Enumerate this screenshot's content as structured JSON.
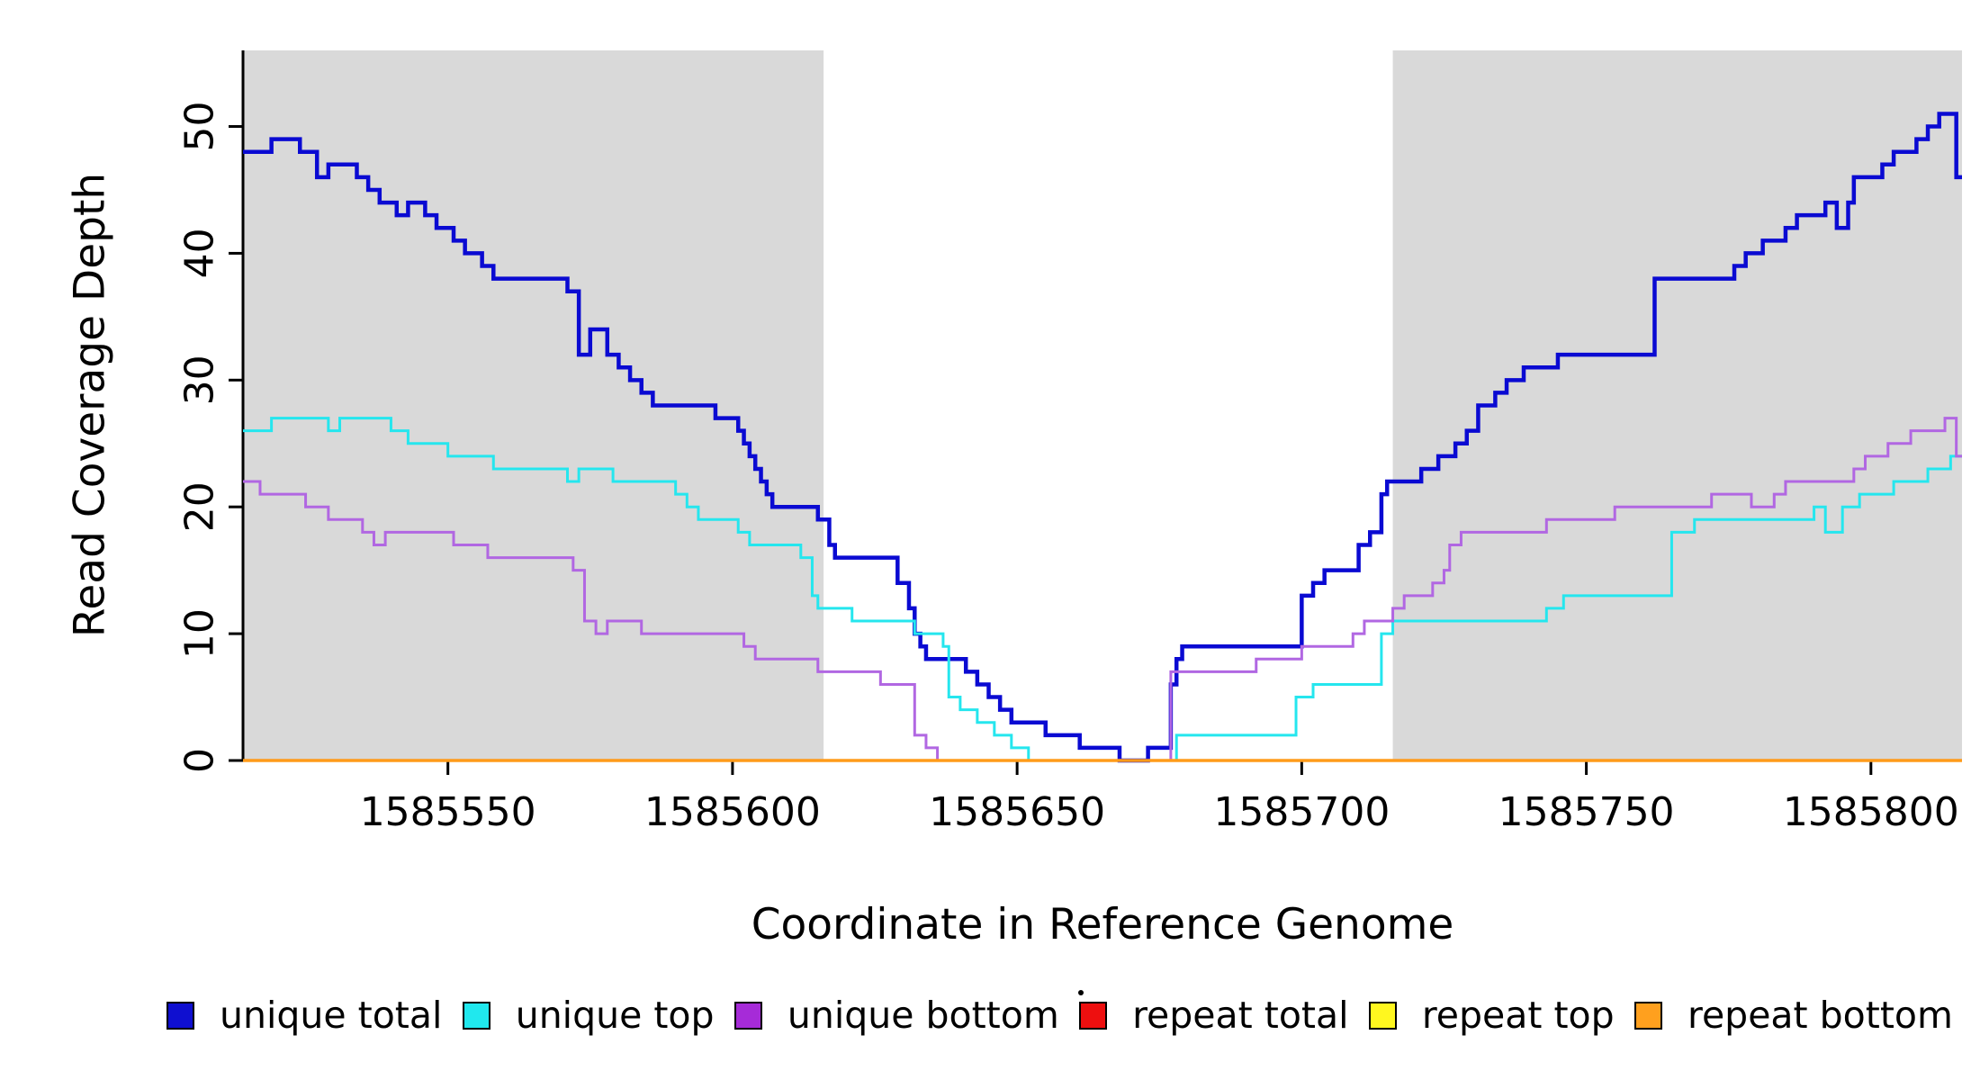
{
  "chart_data": {
    "type": "line",
    "subtype": "step",
    "title": "",
    "xlabel": "Coordinate in Reference Genome",
    "ylabel": "Read Coverage Depth",
    "xlim": [
      1585514,
      1585816
    ],
    "ylim": [
      0,
      56
    ],
    "xticks": [
      1585550,
      1585600,
      1585650,
      1585700,
      1585750,
      1585800
    ],
    "yticks": [
      0,
      10,
      20,
      30,
      40,
      50
    ],
    "grid": false,
    "legend_position": "bottom",
    "background_color": "#FFFFFF",
    "shaded_region_color": "#D9D9D9",
    "shaded_regions": [
      {
        "x0": 1585514,
        "x1": 1585616
      },
      {
        "x0": 1585716,
        "x1": 1585816
      }
    ],
    "series": [
      {
        "name": "unique total",
        "color": "#0A0AD2",
        "width": 4.5,
        "points": [
          [
            1585514,
            48
          ],
          [
            1585519,
            49
          ],
          [
            1585524,
            48
          ],
          [
            1585527,
            46
          ],
          [
            1585529,
            47
          ],
          [
            1585534,
            46
          ],
          [
            1585536,
            45
          ],
          [
            1585538,
            44
          ],
          [
            1585541,
            43
          ],
          [
            1585543,
            44
          ],
          [
            1585546,
            43
          ],
          [
            1585548,
            42
          ],
          [
            1585551,
            41
          ],
          [
            1585553,
            40
          ],
          [
            1585556,
            39
          ],
          [
            1585558,
            38
          ],
          [
            1585571,
            37
          ],
          [
            1585573,
            32
          ],
          [
            1585575,
            34
          ],
          [
            1585578,
            32
          ],
          [
            1585580,
            31
          ],
          [
            1585582,
            30
          ],
          [
            1585584,
            29
          ],
          [
            1585586,
            28
          ],
          [
            1585597,
            27
          ],
          [
            1585601,
            26
          ],
          [
            1585602,
            25
          ],
          [
            1585603,
            24
          ],
          [
            1585604,
            23
          ],
          [
            1585605,
            22
          ],
          [
            1585606,
            21
          ],
          [
            1585607,
            20
          ],
          [
            1585615,
            19
          ],
          [
            1585617,
            17
          ],
          [
            1585618,
            16
          ],
          [
            1585629,
            14
          ],
          [
            1585631,
            12
          ],
          [
            1585632,
            10
          ],
          [
            1585633,
            9
          ],
          [
            1585634,
            8
          ],
          [
            1585641,
            7
          ],
          [
            1585643,
            6
          ],
          [
            1585645,
            5
          ],
          [
            1585647,
            4
          ],
          [
            1585649,
            3
          ],
          [
            1585655,
            2
          ],
          [
            1585661,
            1
          ],
          [
            1585668,
            0
          ],
          [
            1585673,
            1
          ],
          [
            1585677,
            6
          ],
          [
            1585678,
            8
          ],
          [
            1585679,
            9
          ],
          [
            1585700,
            13
          ],
          [
            1585702,
            14
          ],
          [
            1585704,
            15
          ],
          [
            1585710,
            17
          ],
          [
            1585712,
            18
          ],
          [
            1585714,
            21
          ],
          [
            1585715,
            22
          ],
          [
            1585721,
            23
          ],
          [
            1585724,
            24
          ],
          [
            1585727,
            25
          ],
          [
            1585729,
            26
          ],
          [
            1585731,
            28
          ],
          [
            1585734,
            29
          ],
          [
            1585736,
            30
          ],
          [
            1585739,
            31
          ],
          [
            1585745,
            32
          ],
          [
            1585762,
            38
          ],
          [
            1585776,
            39
          ],
          [
            1585778,
            40
          ],
          [
            1585781,
            41
          ],
          [
            1585785,
            42
          ],
          [
            1585787,
            43
          ],
          [
            1585792,
            44
          ],
          [
            1585794,
            42
          ],
          [
            1585796,
            44
          ],
          [
            1585797,
            46
          ],
          [
            1585802,
            47
          ],
          [
            1585804,
            48
          ],
          [
            1585808,
            49
          ],
          [
            1585810,
            50
          ],
          [
            1585812,
            51
          ],
          [
            1585815,
            46
          ]
        ]
      },
      {
        "name": "unique top",
        "color": "#25E6EE",
        "width": 3,
        "points": [
          [
            1585514,
            26
          ],
          [
            1585519,
            27
          ],
          [
            1585529,
            26
          ],
          [
            1585531,
            27
          ],
          [
            1585540,
            26
          ],
          [
            1585543,
            25
          ],
          [
            1585550,
            24
          ],
          [
            1585558,
            23
          ],
          [
            1585571,
            22
          ],
          [
            1585573,
            23
          ],
          [
            1585579,
            22
          ],
          [
            1585590,
            21
          ],
          [
            1585592,
            20
          ],
          [
            1585594,
            19
          ],
          [
            1585601,
            18
          ],
          [
            1585603,
            17
          ],
          [
            1585612,
            16
          ],
          [
            1585614,
            13
          ],
          [
            1585615,
            12
          ],
          [
            1585621,
            11
          ],
          [
            1585632,
            10
          ],
          [
            1585637,
            9
          ],
          [
            1585638,
            5
          ],
          [
            1585640,
            4
          ],
          [
            1585643,
            3
          ],
          [
            1585646,
            2
          ],
          [
            1585649,
            1
          ],
          [
            1585652,
            0
          ],
          [
            1585678,
            2
          ],
          [
            1585699,
            5
          ],
          [
            1585702,
            6
          ],
          [
            1585714,
            10
          ],
          [
            1585716,
            11
          ],
          [
            1585743,
            12
          ],
          [
            1585746,
            13
          ],
          [
            1585765,
            18
          ],
          [
            1585769,
            19
          ],
          [
            1585790,
            20
          ],
          [
            1585792,
            18
          ],
          [
            1585795,
            20
          ],
          [
            1585798,
            21
          ],
          [
            1585804,
            22
          ],
          [
            1585810,
            23
          ],
          [
            1585814,
            24
          ]
        ]
      },
      {
        "name": "unique bottom",
        "color": "#B167E2",
        "width": 3,
        "points": [
          [
            1585514,
            22
          ],
          [
            1585517,
            21
          ],
          [
            1585525,
            20
          ],
          [
            1585529,
            19
          ],
          [
            1585535,
            18
          ],
          [
            1585537,
            17
          ],
          [
            1585539,
            18
          ],
          [
            1585551,
            17
          ],
          [
            1585557,
            16
          ],
          [
            1585572,
            15
          ],
          [
            1585574,
            11
          ],
          [
            1585576,
            10
          ],
          [
            1585578,
            11
          ],
          [
            1585584,
            10
          ],
          [
            1585602,
            9
          ],
          [
            1585604,
            8
          ],
          [
            1585615,
            7
          ],
          [
            1585626,
            6
          ],
          [
            1585632,
            2
          ],
          [
            1585634,
            1
          ],
          [
            1585636,
            0
          ],
          [
            1585677,
            7
          ],
          [
            1585692,
            8
          ],
          [
            1585700,
            9
          ],
          [
            1585709,
            10
          ],
          [
            1585711,
            11
          ],
          [
            1585716,
            12
          ],
          [
            1585718,
            13
          ],
          [
            1585723,
            14
          ],
          [
            1585725,
            15
          ],
          [
            1585726,
            17
          ],
          [
            1585728,
            18
          ],
          [
            1585743,
            19
          ],
          [
            1585755,
            20
          ],
          [
            1585772,
            21
          ],
          [
            1585779,
            20
          ],
          [
            1585783,
            21
          ],
          [
            1585785,
            22
          ],
          [
            1585797,
            23
          ],
          [
            1585799,
            24
          ],
          [
            1585803,
            25
          ],
          [
            1585807,
            26
          ],
          [
            1585813,
            27
          ],
          [
            1585815,
            24
          ]
        ]
      },
      {
        "name": "repeat total",
        "color": "#E60000",
        "width": 3,
        "points": [
          [
            1585514,
            0
          ]
        ]
      },
      {
        "name": "repeat top",
        "color": "#FFF000",
        "width": 3,
        "points": [
          [
            1585514,
            0
          ]
        ]
      },
      {
        "name": "repeat bottom",
        "color": "#FF9B1A",
        "width": 3.5,
        "points": [
          [
            1585514,
            0
          ]
        ]
      }
    ],
    "legend": [
      {
        "label": "unique total",
        "color": "#0F0FD0"
      },
      {
        "label": "unique top",
        "color": "#20E8EE"
      },
      {
        "label": "unique bottom",
        "color": "#A62BD8"
      },
      {
        "label": "repeat total",
        "color": "#EE0F0F"
      },
      {
        "label": "repeat top",
        "color": "#FFF71F"
      },
      {
        "label": "repeat bottom",
        "color": "#FFA01E"
      }
    ]
  }
}
